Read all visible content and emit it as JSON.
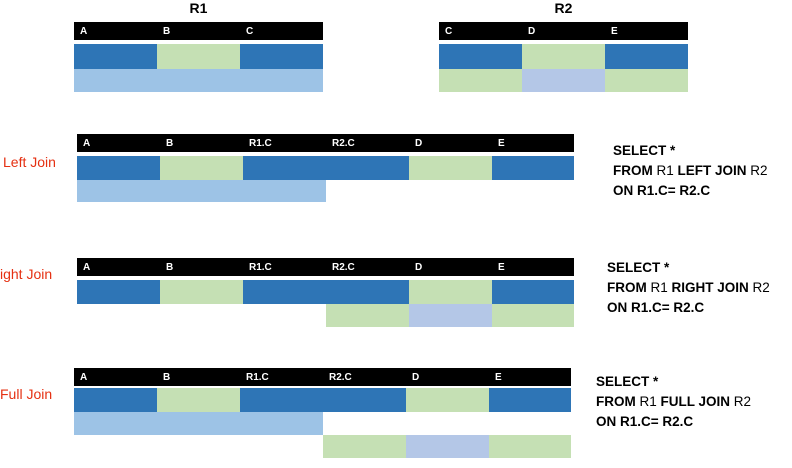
{
  "tables": {
    "r1": {
      "title": "R1",
      "columns": [
        "A",
        "B",
        "C"
      ]
    },
    "r2": {
      "title": "R2",
      "columns": [
        "C",
        "D",
        "E"
      ]
    }
  },
  "joined_columns": [
    "A",
    "B",
    "R1.C",
    "R2.C",
    "D",
    "E"
  ],
  "joins": [
    {
      "label": "Left Join",
      "sql": {
        "l1": "SELECT *",
        "l2a": "FROM",
        "l2b": " R1 ",
        "l2c": "LEFT JOIN",
        "l2d": " R2",
        "l3": "ON R1.C= R2.C"
      }
    },
    {
      "label": "ight Join",
      "sql": {
        "l1": "SELECT *",
        "l2a": "FROM",
        "l2b": " R1 ",
        "l2c": "RIGHT JOIN",
        "l2d": " R2",
        "l3": "ON R1.C= R2.C"
      }
    },
    {
      "label": "Full Join",
      "sql": {
        "l1": "SELECT *",
        "l2a": "FROM",
        "l2b": " R1 ",
        "l2c": "FULL JOIN",
        "l2d": " R2",
        "l3": "ON R1.C= R2.C"
      }
    }
  ],
  "colors": {
    "dark_blue": "#2e75b6",
    "light_green": "#c5e0b4",
    "light_blue": "#9dc3e6",
    "lavender": "#b4c7e7",
    "label_red": "#e53012"
  }
}
